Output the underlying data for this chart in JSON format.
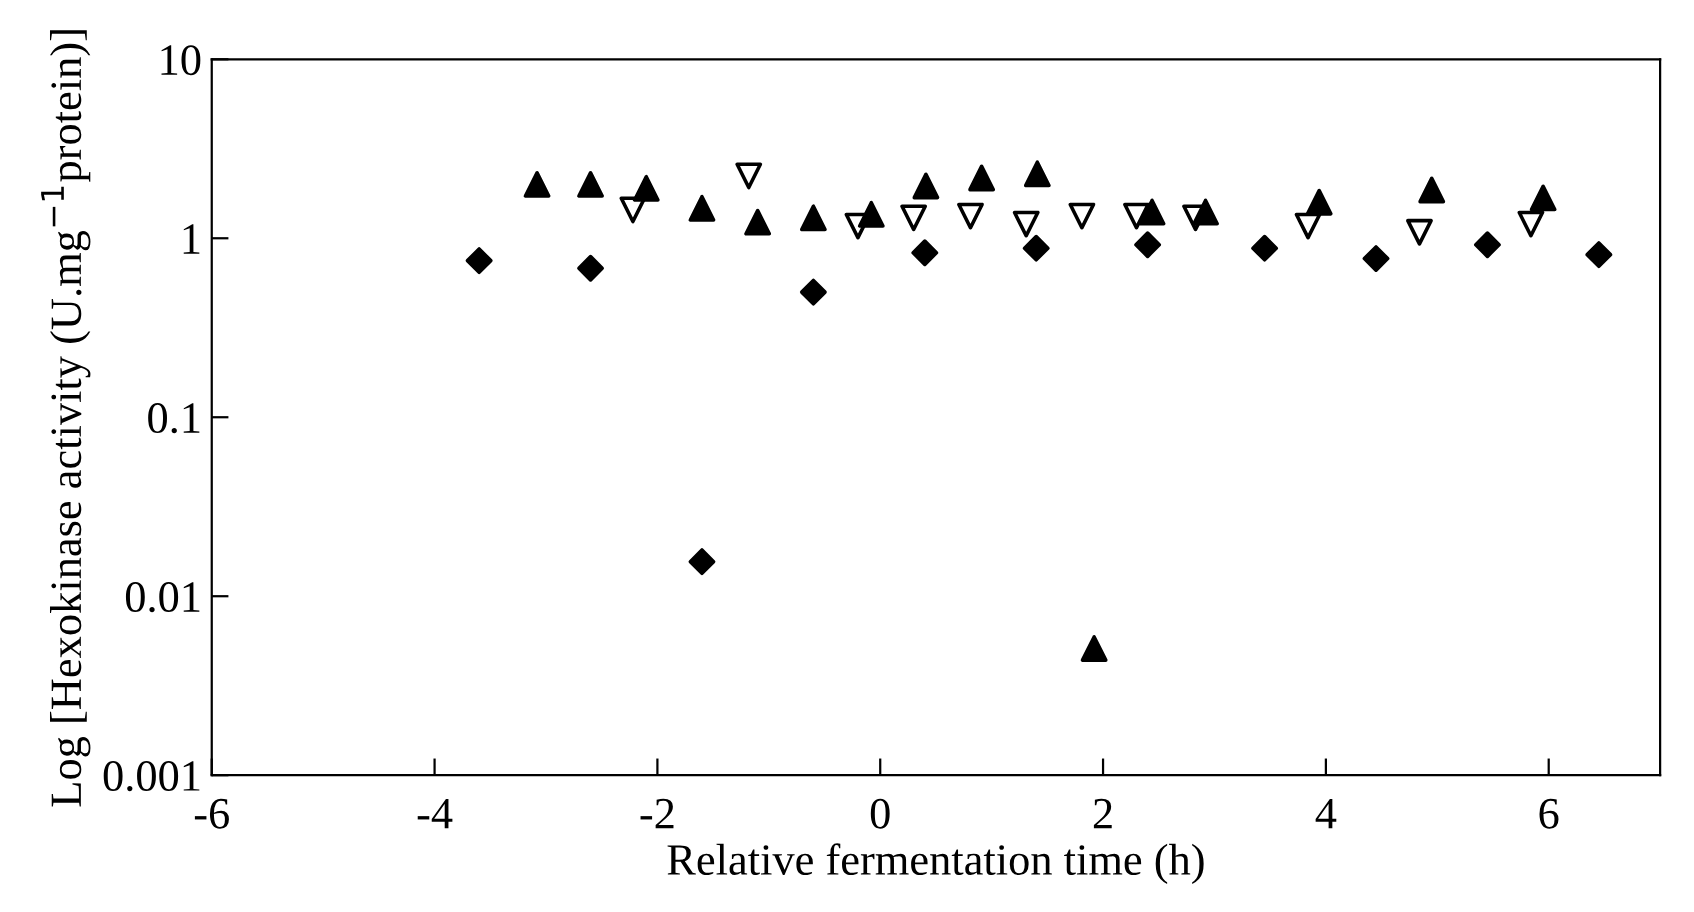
{
  "chart_data": {
    "type": "scatter",
    "xlabel": "Relative fermentation time (h)",
    "ylabel": "Log [Hexokinase activity (U.mg$^{−1}$protein)]",
    "log": "y",
    "xlim": [
      -6,
      7
    ],
    "xticks": [
      -6,
      -4,
      -2,
      0,
      2,
      4,
      6
    ],
    "ylim": [
      0.001,
      10
    ],
    "yticks": [
      {
        "value": 0.001,
        "label": "0.001"
      },
      {
        "value": 0.01,
        "label": "0.01"
      },
      {
        "value": 0.1,
        "label": "0.1"
      },
      {
        "value": 1,
        "label": "1"
      },
      {
        "value": 10,
        "label": "10"
      }
    ],
    "grid": false,
    "legend": false,
    "series": [
      {
        "marker": "diamond",
        "color": "#000000",
        "x": [
          -3.6,
          -2.6,
          -1.6,
          -0.6,
          0.4,
          1.4,
          2.4,
          3.45,
          4.45,
          5.45,
          6.45
        ],
        "values": [
          0.75,
          0.68,
          0.0156,
          0.5,
          0.83,
          0.88,
          0.92,
          0.88,
          0.77,
          0.92,
          0.81
        ]
      },
      {
        "marker": "triangle",
        "color": "#000000",
        "x": [
          -3.08,
          -2.6,
          -2.1,
          -1.6,
          -1.1,
          -0.6,
          -0.08,
          0.41,
          0.91,
          1.41,
          1.92,
          2.44,
          2.92,
          3.94,
          4.95,
          5.95
        ],
        "values": [
          2.0,
          2.0,
          1.9,
          1.47,
          1.23,
          1.3,
          1.36,
          1.96,
          2.17,
          2.29,
          0.0051,
          1.4,
          1.4,
          1.59,
          1.86,
          1.68
        ]
      },
      {
        "marker": "triangle_down",
        "color": "#000000",
        "x": [
          -2.22,
          -1.18,
          -0.2,
          0.3,
          0.81,
          1.31,
          1.81,
          2.3,
          2.83,
          3.84,
          4.84,
          5.84
        ],
        "values": [
          1.44,
          2.23,
          1.17,
          1.3,
          1.33,
          1.2,
          1.33,
          1.33,
          1.3,
          1.17,
          1.08,
          1.2
        ]
      }
    ]
  }
}
